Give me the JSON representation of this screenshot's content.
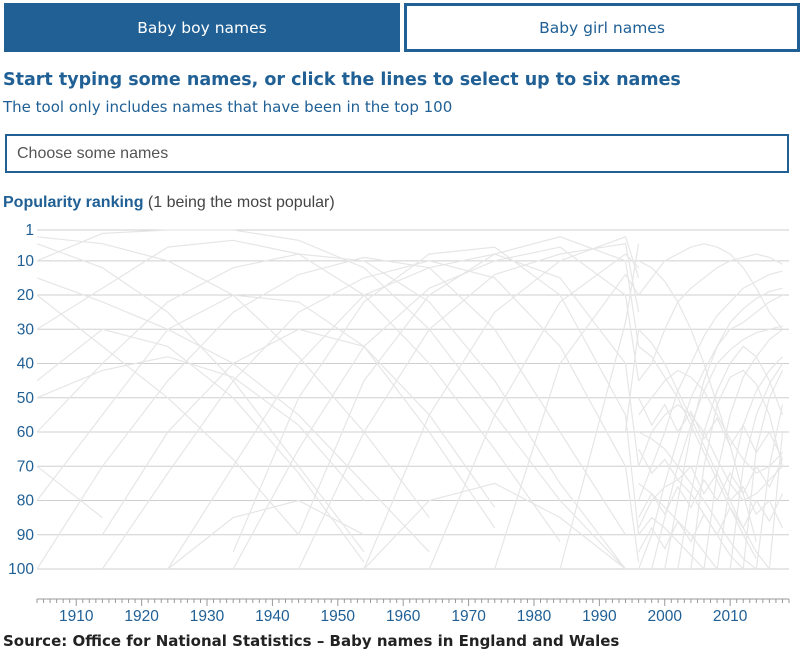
{
  "tabs": [
    {
      "label": "Baby boy names",
      "active": true
    },
    {
      "label": "Baby girl names",
      "active": false
    }
  ],
  "heading": "Start typing some names, or click the lines to select up to six names",
  "subheading": "The tool only includes names that have been in the top 100",
  "search": {
    "placeholder": "Choose some names",
    "value": ""
  },
  "chart_title": {
    "bold": "Popularity ranking",
    "note": "(1 being the most popular)"
  },
  "source": "Source: Office for National Statistics – Baby names in England and Wales",
  "colors": {
    "accent": "#206095",
    "line": "#e6e6e6",
    "grid": "#cfcfcf",
    "tick_text": "#206095"
  },
  "chart_data": {
    "type": "line",
    "title": "Popularity ranking",
    "subtitle": "(1 being the most popular)",
    "xlabel": "",
    "ylabel": "",
    "y_inverted": true,
    "ylim": [
      1,
      100
    ],
    "xlim": [
      1904,
      2019
    ],
    "yticks": [
      1,
      10,
      20,
      30,
      40,
      50,
      60,
      70,
      80,
      90,
      100
    ],
    "xticks": [
      1910,
      1920,
      1930,
      1940,
      1950,
      1960,
      1970,
      1980,
      1990,
      2000,
      2010
    ],
    "grid": "horizontal",
    "legend": "none",
    "early_sample_years": [
      1904,
      1914,
      1924,
      1934,
      1944,
      1954,
      1964,
      1974,
      1984,
      1994,
      1996
    ],
    "late_sample_years": [
      1996,
      1998,
      2000,
      2002,
      2004,
      2006,
      2008,
      2010,
      2012,
      2014,
      2016,
      2018
    ],
    "series_note": "Many unlabelled grey lines, one per name that reached the top 100; approximate shapes only",
    "series": [
      {
        "values": [
          10,
          2,
          1,
          1,
          4,
          12,
          30,
          55,
          80,
          100,
          null
        ]
      },
      {
        "values": [
          30,
          18,
          6,
          4,
          8,
          20,
          40,
          65,
          92,
          null,
          null
        ]
      },
      {
        "values": [
          60,
          40,
          22,
          12,
          8,
          10,
          22,
          45,
          75,
          100,
          null
        ]
      },
      {
        "values": [
          100,
          70,
          45,
          25,
          14,
          9,
          12,
          30,
          60,
          90,
          null
        ]
      },
      {
        "values": [
          null,
          100,
          72,
          45,
          25,
          15,
          10,
          15,
          35,
          70,
          98
        ]
      },
      {
        "values": [
          null,
          null,
          100,
          70,
          40,
          20,
          12,
          8,
          15,
          40,
          70
        ]
      },
      {
        "values": [
          null,
          null,
          null,
          100,
          65,
          35,
          18,
          10,
          6,
          20,
          45
        ]
      },
      {
        "values": [
          null,
          null,
          null,
          null,
          100,
          60,
          30,
          14,
          8,
          5,
          25
        ]
      },
      {
        "values": [
          null,
          null,
          null,
          null,
          null,
          100,
          55,
          25,
          10,
          3,
          15
        ]
      },
      {
        "values": [
          5,
          12,
          25,
          45,
          70,
          95,
          null,
          null,
          null,
          null,
          null
        ]
      },
      {
        "values": [
          20,
          35,
          50,
          68,
          90,
          null,
          null,
          null,
          null,
          null,
          null
        ]
      },
      {
        "values": [
          3,
          5,
          10,
          20,
          38,
          60,
          85,
          null,
          null,
          null,
          null
        ]
      },
      {
        "values": [
          45,
          30,
          35,
          50,
          72,
          98,
          null,
          null,
          null,
          null,
          null
        ]
      },
      {
        "values": [
          80,
          55,
          30,
          20,
          22,
          35,
          60,
          88,
          null,
          null,
          null
        ]
      },
      {
        "values": [
          null,
          90,
          60,
          40,
          30,
          35,
          55,
          82,
          null,
          null,
          null
        ]
      },
      {
        "values": [
          null,
          null,
          null,
          95,
          50,
          22,
          8,
          6,
          20,
          55,
          90
        ]
      },
      {
        "values": [
          null,
          null,
          null,
          null,
          90,
          45,
          20,
          8,
          3,
          10,
          35
        ]
      },
      {
        "values": [
          null,
          null,
          null,
          null,
          null,
          null,
          100,
          55,
          22,
          8,
          12
        ]
      },
      {
        "values": [
          null,
          null,
          null,
          null,
          null,
          null,
          null,
          100,
          40,
          14,
          20
        ]
      },
      {
        "values": [
          15,
          22,
          30,
          40,
          55,
          75,
          95,
          null,
          null,
          null,
          null
        ]
      },
      {
        "values": [
          50,
          42,
          38,
          44,
          58,
          80,
          null,
          null,
          null,
          null,
          null
        ]
      },
      {
        "values": [
          70,
          85,
          null,
          null,
          null,
          null,
          null,
          null,
          null,
          null,
          null
        ]
      },
      {
        "values": [
          null,
          null,
          null,
          null,
          null,
          null,
          null,
          null,
          100,
          28,
          5
        ]
      },
      {
        "values": [
          null,
          null,
          null,
          null,
          null,
          null,
          null,
          null,
          null,
          60,
          30
        ]
      },
      {
        "values": [
          null,
          null,
          null,
          null,
          null,
          100,
          80,
          75,
          85,
          100,
          null
        ]
      },
      {
        "values": [
          null,
          null,
          100,
          85,
          80,
          90,
          null,
          null,
          null,
          null,
          null
        ]
      }
    ],
    "late_series": [
      {
        "values": [
          20,
          15,
          10,
          8,
          6,
          5,
          6,
          8,
          12,
          18,
          25,
          30
        ]
      },
      {
        "values": [
          45,
          40,
          30,
          22,
          18,
          15,
          12,
          10,
          9,
          8,
          9,
          11
        ]
      },
      {
        "values": [
          80,
          70,
          60,
          48,
          40,
          32,
          26,
          22,
          18,
          16,
          14,
          13
        ]
      },
      {
        "values": [
          100,
          90,
          75,
          62,
          50,
          42,
          35,
          30,
          28,
          25,
          22,
          20
        ]
      },
      {
        "values": [
          null,
          100,
          85,
          70,
          58,
          48,
          40,
          36,
          33,
          31,
          30,
          29
        ]
      },
      {
        "values": [
          60,
          62,
          65,
          70,
          75,
          80,
          86,
          92,
          97,
          100,
          null,
          null
        ]
      },
      {
        "values": [
          35,
          38,
          44,
          50,
          58,
          66,
          74,
          82,
          90,
          97,
          null,
          null
        ]
      },
      {
        "values": [
          10,
          12,
          16,
          22,
          30,
          40,
          52,
          64,
          78,
          92,
          null,
          null
        ]
      },
      {
        "values": [
          null,
          null,
          100,
          80,
          60,
          45,
          35,
          28,
          24,
          21,
          19,
          18
        ]
      },
      {
        "values": [
          null,
          null,
          null,
          100,
          78,
          60,
          48,
          40,
          35,
          38,
          45,
          55
        ]
      },
      {
        "values": [
          null,
          null,
          null,
          null,
          100,
          70,
          52,
          44,
          42,
          46,
          55,
          70
        ]
      },
      {
        "values": [
          90,
          85,
          88,
          92,
          96,
          100,
          null,
          null,
          null,
          null,
          null,
          null
        ]
      },
      {
        "values": [
          70,
          60,
          55,
          52,
          55,
          60,
          68,
          75,
          80,
          78,
          74,
          70
        ]
      },
      {
        "values": [
          55,
          50,
          45,
          42,
          44,
          48,
          55,
          62,
          68,
          72,
          70,
          66
        ]
      },
      {
        "values": [
          null,
          null,
          null,
          null,
          null,
          100,
          72,
          55,
          44,
          38,
          33,
          30
        ]
      },
      {
        "values": [
          null,
          null,
          null,
          null,
          null,
          null,
          100,
          75,
          58,
          48,
          42,
          38
        ]
      },
      {
        "values": [
          null,
          null,
          null,
          null,
          null,
          null,
          null,
          100,
          70,
          55,
          46,
          40
        ]
      },
      {
        "values": [
          null,
          null,
          null,
          null,
          null,
          null,
          null,
          null,
          100,
          65,
          50,
          42
        ]
      },
      {
        "values": [
          30,
          34,
          40,
          48,
          56,
          64,
          72,
          80,
          88,
          95,
          100,
          null
        ]
      },
      {
        "values": [
          75,
          78,
          82,
          86,
          90,
          95,
          100,
          null,
          null,
          null,
          null,
          null
        ]
      },
      {
        "values": [
          88,
          80,
          76,
          74,
          78,
          84,
          90,
          96,
          100,
          null,
          null,
          null
        ]
      },
      {
        "values": [
          null,
          null,
          null,
          null,
          null,
          null,
          null,
          null,
          null,
          100,
          70,
          52
        ]
      },
      {
        "values": [
          null,
          null,
          null,
          null,
          null,
          null,
          null,
          null,
          null,
          null,
          100,
          60
        ]
      },
      {
        "values": [
          65,
          72,
          68,
          74,
          70,
          78,
          72,
          80,
          76,
          84,
          80,
          88
        ]
      },
      {
        "values": [
          85,
          78,
          84,
          76,
          82,
          74,
          80,
          72,
          78,
          70,
          76,
          68
        ]
      },
      {
        "values": [
          50,
          58,
          52,
          60,
          54,
          62,
          56,
          64,
          58,
          66,
          60,
          68
        ]
      },
      {
        "values": [
          95,
          88,
          94,
          86,
          92,
          84,
          90,
          82,
          88,
          80,
          86,
          78
        ]
      }
    ]
  }
}
